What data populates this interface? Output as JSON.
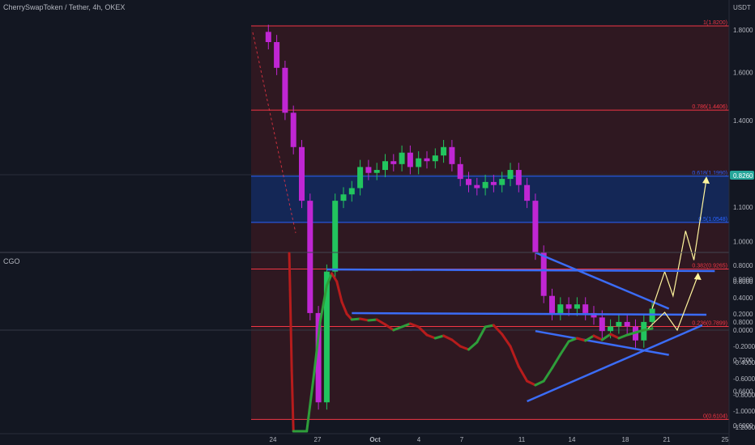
{
  "header": {
    "title": "CherrySwapToken / Tether, 4h, OKEX",
    "currency": "USDT"
  },
  "colors": {
    "background": "#131722",
    "up": "#26a69a",
    "up_bright": "#22c55e",
    "down": "#c026d3",
    "fib_red": "#f23645",
    "fib_red_fill": "#3a1a22",
    "fib_blue": "#2962ff",
    "fib_blue_fill": "#14285a",
    "trend_blue": "#3b6cf6",
    "projection": "#fff59d",
    "cgo_up": "#2e9e3a",
    "cgo_down": "#b71c1c",
    "grid": "#2a2e39",
    "text": "#b2b5be",
    "last_price_bg": "#26a69a"
  },
  "last_price": "0.8260",
  "chart_data": [
    {
      "type": "candlestick",
      "title": "CherrySwapToken / Tether, 4h, OKEX",
      "ylabel": "USDT",
      "ylim": [
        0.55,
        1.9
      ],
      "y_ticks": [
        "1.8000",
        "1.6000",
        "1.4000",
        "1.2000",
        "1.1000",
        "1.0000",
        "0.9000",
        "0.8000",
        "0.7200",
        "0.6600",
        "0.6000",
        "0.5500"
      ],
      "x_ticks": [
        "24",
        "27",
        "Oct",
        "4",
        "7",
        "11",
        "14",
        "18",
        "21",
        "25"
      ],
      "fib_levels": [
        {
          "ratio": "1",
          "price": 1.82,
          "label": "1(1.8200)",
          "color": "red"
        },
        {
          "ratio": "0.786",
          "price": 1.4406,
          "label": "0.786(1.4406)",
          "color": "red"
        },
        {
          "ratio": "0.618",
          "price": 1.199,
          "label": "0.618(1.1990)",
          "color": "blue"
        },
        {
          "ratio": "0.5",
          "price": 1.0548,
          "label": "0.5(1.0548)",
          "color": "blue"
        },
        {
          "ratio": "0.382",
          "price": 0.9265,
          "label": "0.382(0.9265)",
          "color": "red"
        },
        {
          "ratio": "0.236",
          "price": 0.7899,
          "label": "0.236(0.7899)",
          "color": "red"
        },
        {
          "ratio": "0",
          "price": 0.6104,
          "label": "0(0.6104)",
          "color": "red"
        }
      ],
      "series_close": [
        [
          0,
          1.79
        ],
        [
          1,
          1.74
        ],
        [
          2,
          1.62
        ],
        [
          3,
          1.43
        ],
        [
          4,
          1.3
        ],
        [
          5,
          1.12
        ],
        [
          6,
          0.82
        ],
        [
          7,
          0.64
        ],
        [
          8,
          0.92
        ],
        [
          9,
          1.12
        ],
        [
          10,
          1.14
        ],
        [
          11,
          1.16
        ],
        [
          12,
          1.23
        ],
        [
          13,
          1.21
        ],
        [
          14,
          1.22
        ],
        [
          15,
          1.25
        ],
        [
          16,
          1.24
        ],
        [
          17,
          1.28
        ],
        [
          18,
          1.23
        ],
        [
          19,
          1.26
        ],
        [
          20,
          1.25
        ],
        [
          21,
          1.27
        ],
        [
          22,
          1.3
        ],
        [
          23,
          1.24
        ],
        [
          24,
          1.19
        ],
        [
          25,
          1.17
        ],
        [
          26,
          1.16
        ],
        [
          27,
          1.18
        ],
        [
          28,
          1.17
        ],
        [
          29,
          1.19
        ],
        [
          30,
          1.22
        ],
        [
          31,
          1.17
        ],
        [
          32,
          1.12
        ],
        [
          33,
          0.97
        ],
        [
          34,
          0.86
        ],
        [
          35,
          0.82
        ],
        [
          36,
          0.84
        ],
        [
          37,
          0.83
        ],
        [
          38,
          0.84
        ],
        [
          39,
          0.82
        ],
        [
          40,
          0.81
        ],
        [
          41,
          0.78
        ],
        [
          42,
          0.79
        ],
        [
          43,
          0.8
        ],
        [
          44,
          0.79
        ],
        [
          45,
          0.76
        ],
        [
          46,
          0.8
        ],
        [
          47,
          0.83
        ]
      ],
      "trendlines": [
        {
          "name": "upper",
          "from": [
            33,
            0.97
          ],
          "to": [
            49,
            0.83
          ]
        },
        {
          "name": "lower",
          "from": [
            33,
            0.78
          ],
          "to": [
            49,
            0.73
          ]
        }
      ],
      "projection": [
        [
          47,
          0.83
        ],
        [
          48.5,
          0.92
        ],
        [
          49.5,
          0.86
        ],
        [
          51,
          1.03
        ],
        [
          52,
          0.95
        ],
        [
          53.5,
          1.19
        ]
      ]
    },
    {
      "type": "line",
      "title": "CGO",
      "ylim": [
        -1.25,
        0.85
      ],
      "y_ticks": [
        "0.8000",
        "0.6000",
        "0.4000",
        "0.2000",
        "0.0000",
        "-0.2000",
        "-0.4000",
        "-0.6000",
        "-0.8000",
        "-1.0000",
        "-1.2000"
      ],
      "series": [
        {
          "name": "CGO",
          "points": [
            [
              3.5,
              0.95
            ],
            [
              3.6,
              0.5
            ],
            [
              3.8,
              -0.5
            ],
            [
              4.0,
              -1.25
            ],
            [
              5.0,
              -1.25
            ],
            [
              5.6,
              -1.25
            ],
            [
              6.4,
              -0.6
            ],
            [
              7.2,
              0.1
            ],
            [
              8.0,
              0.55
            ],
            [
              8.6,
              0.7
            ],
            [
              9.2,
              0.6
            ],
            [
              9.8,
              0.35
            ],
            [
              10.4,
              0.2
            ],
            [
              11.0,
              0.13
            ],
            [
              12.0,
              0.14
            ],
            [
              13.0,
              0.12
            ],
            [
              14.0,
              0.13
            ],
            [
              15.0,
              0.07
            ],
            [
              16.0,
              0.0
            ],
            [
              17.0,
              0.04
            ],
            [
              18.0,
              0.08
            ],
            [
              19.0,
              0.04
            ],
            [
              20.0,
              -0.06
            ],
            [
              21.0,
              -0.1
            ],
            [
              22.0,
              -0.07
            ],
            [
              23.0,
              -0.12
            ],
            [
              24.0,
              -0.2
            ],
            [
              25.0,
              -0.24
            ],
            [
              26.0,
              -0.15
            ],
            [
              27.0,
              0.04
            ],
            [
              28.0,
              0.06
            ],
            [
              29.0,
              -0.05
            ],
            [
              30.0,
              -0.2
            ],
            [
              31.0,
              -0.45
            ],
            [
              32.0,
              -0.63
            ],
            [
              33.0,
              -0.68
            ],
            [
              34.0,
              -0.63
            ],
            [
              35.0,
              -0.47
            ],
            [
              36.0,
              -0.3
            ],
            [
              37.0,
              -0.14
            ],
            [
              38.0,
              -0.1
            ],
            [
              39.0,
              -0.13
            ],
            [
              40.0,
              -0.07
            ],
            [
              41.0,
              -0.12
            ],
            [
              42.0,
              -0.05
            ],
            [
              43.0,
              -0.1
            ],
            [
              44.0,
              -0.06
            ],
            [
              45.0,
              -0.03
            ],
            [
              46.0,
              0.0
            ],
            [
              47.0,
              0.02
            ]
          ]
        }
      ],
      "trendlines": [
        {
          "name": "top",
          "from": [
            8.0,
            0.75
          ],
          "to": [
            54.5,
            0.73
          ]
        },
        {
          "name": "middle",
          "from": [
            11.0,
            0.21
          ],
          "to": [
            53.5,
            0.19
          ]
        },
        {
          "name": "support",
          "from": [
            32.0,
            -0.88
          ],
          "to": [
            53.0,
            0.06
          ]
        }
      ],
      "projection": [
        [
          46.5,
          0.02
        ],
        [
          48.5,
          0.22
        ],
        [
          50.0,
          0.0
        ],
        [
          52.5,
          0.68
        ]
      ]
    }
  ]
}
